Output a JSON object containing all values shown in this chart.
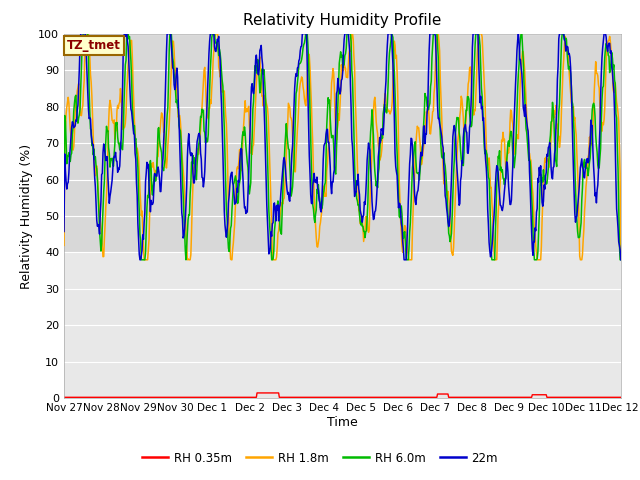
{
  "title": "Relativity Humidity Profile",
  "ylabel": "Relativity Humidity (%)",
  "xlabel": "Time",
  "annotation": "TZ_tmet",
  "ylim": [
    0,
    100
  ],
  "yticks": [
    0,
    10,
    20,
    30,
    40,
    50,
    60,
    70,
    80,
    90,
    100
  ],
  "colors": {
    "rh035": "#ff0000",
    "rh18": "#ffa500",
    "rh60": "#00bb00",
    "22m": "#0000cc"
  },
  "legend_labels": [
    "RH 0.35m",
    "RH 1.8m",
    "RH 6.0m",
    "22m"
  ],
  "fig_bg_color": "#ffffff",
  "ax_bg_color": "#d8d8d8",
  "lower_bg_color": "#e8e8e8",
  "upper_bg_color": "#d8d8d8",
  "grid_color": "#ffffff",
  "xtick_labels": [
    "Nov 27",
    "Nov 28",
    "Nov 29",
    "Nov 30",
    "Dec 1",
    "Dec 2",
    "Dec 3",
    "Dec 4",
    "Dec 5",
    "Dec 6",
    "Dec 7",
    "Dec 8",
    "Dec 9",
    "Dec 10",
    "Dec 11",
    "Dec 12"
  ],
  "xtick_positions": [
    0,
    1,
    2,
    3,
    4,
    5,
    6,
    7,
    8,
    9,
    10,
    11,
    12,
    13,
    14,
    15
  ]
}
